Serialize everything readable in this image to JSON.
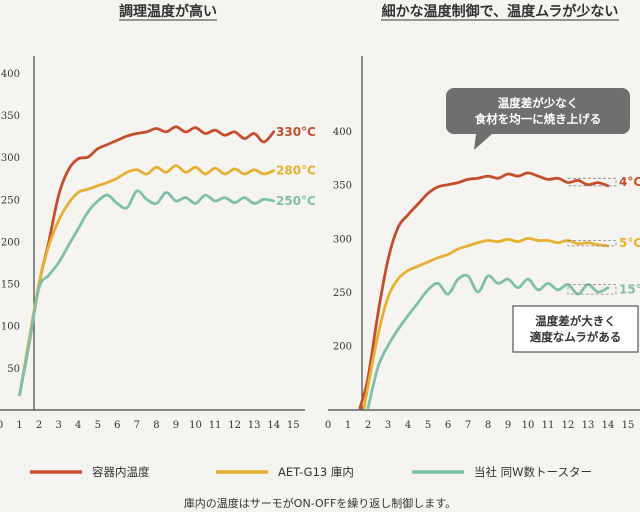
{
  "colors": {
    "inner": "#c44e2d",
    "aet": "#e6b132",
    "other": "#7fc0ab",
    "axis": "#444444",
    "bubble_dark": "#6f6f6f",
    "bubble_light": "#555555"
  },
  "legend": [
    "容器内温度",
    "AET-G13 庫内",
    "当社 同W数トースター"
  ],
  "footnote": "庫内の温度はサーモがON-OFFを繰り返し制御します。",
  "chart_data": [
    {
      "type": "line",
      "title": "調理温度が高い",
      "xlim": [
        0,
        15.6
      ],
      "ylim": [
        0,
        420
      ],
      "x_ticks": [
        0,
        1,
        2,
        3,
        4,
        5,
        6,
        7,
        8,
        9,
        10,
        11,
        12,
        13,
        14,
        15
      ],
      "y_ticks": [
        50,
        100,
        150,
        200,
        250,
        300,
        350,
        400
      ],
      "series": [
        {
          "name": "容器内温度",
          "color": "#c44e2d",
          "end_label": "330°C",
          "points": [
            [
              1,
              18
            ],
            [
              1.5,
              80
            ],
            [
              2,
              150
            ],
            [
              2.5,
              200
            ],
            [
              3,
              255
            ],
            [
              3.5,
              285
            ],
            [
              4,
              298
            ],
            [
              4.5,
              300
            ],
            [
              5,
              310
            ],
            [
              5.5,
              315
            ],
            [
              6,
              320
            ],
            [
              6.5,
              325
            ],
            [
              7,
              328
            ],
            [
              7.5,
              330
            ],
            [
              8,
              334
            ],
            [
              8.5,
              330
            ],
            [
              9,
              336
            ],
            [
              9.5,
              330
            ],
            [
              10,
              335
            ],
            [
              10.5,
              328
            ],
            [
              11,
              332
            ],
            [
              11.5,
              326
            ],
            [
              12,
              330
            ],
            [
              12.5,
              322
            ],
            [
              13,
              328
            ],
            [
              13.5,
              318
            ],
            [
              14,
              330
            ]
          ]
        },
        {
          "name": "AET-G13 庫内",
          "color": "#e6b132",
          "end_label": "280°C",
          "points": [
            [
              1,
              18
            ],
            [
              1.5,
              85
            ],
            [
              2,
              150
            ],
            [
              2.5,
              195
            ],
            [
              3,
              225
            ],
            [
              3.5,
              245
            ],
            [
              4,
              258
            ],
            [
              4.5,
              262
            ],
            [
              5,
              266
            ],
            [
              5.5,
              270
            ],
            [
              6,
              275
            ],
            [
              6.5,
              282
            ],
            [
              7,
              285
            ],
            [
              7.5,
              280
            ],
            [
              8,
              288
            ],
            [
              8.5,
              282
            ],
            [
              9,
              290
            ],
            [
              9.5,
              282
            ],
            [
              10,
              288
            ],
            [
              10.5,
              280
            ],
            [
              11,
              287
            ],
            [
              11.5,
              280
            ],
            [
              12,
              286
            ],
            [
              12.5,
              280
            ],
            [
              13,
              285
            ],
            [
              13.5,
              280
            ],
            [
              14,
              284
            ]
          ]
        },
        {
          "name": "当社 同W数トースター",
          "color": "#7fc0ab",
          "end_label": "250°C",
          "points": [
            [
              1,
              18
            ],
            [
              1.5,
              80
            ],
            [
              2,
              145
            ],
            [
              2.5,
              160
            ],
            [
              3,
              175
            ],
            [
              3.5,
              195
            ],
            [
              4,
              215
            ],
            [
              4.5,
              235
            ],
            [
              5,
              248
            ],
            [
              5.5,
              255
            ],
            [
              6,
              245
            ],
            [
              6.5,
              240
            ],
            [
              7,
              260
            ],
            [
              7.5,
              250
            ],
            [
              8,
              245
            ],
            [
              8.5,
              258
            ],
            [
              9,
              248
            ],
            [
              9.5,
              252
            ],
            [
              10,
              245
            ],
            [
              10.5,
              255
            ],
            [
              11,
              248
            ],
            [
              11.5,
              252
            ],
            [
              12,
              246
            ],
            [
              12.5,
              252
            ],
            [
              13,
              245
            ],
            [
              13.5,
              250
            ],
            [
              14,
              248
            ]
          ]
        }
      ]
    },
    {
      "type": "line",
      "title": "細かな温度制御で、温度ムラが少ない",
      "xlim": [
        0,
        15.6
      ],
      "ylim": [
        140,
        470
      ],
      "x_ticks": [
        0,
        1,
        2,
        3,
        4,
        5,
        6,
        7,
        8,
        9,
        10,
        11,
        12,
        13,
        14,
        15
      ],
      "y_ticks": [
        200,
        250,
        300,
        350,
        400
      ],
      "callouts": [
        {
          "lines": [
            "温度差が少なく",
            "食材を均一に焼き上げる"
          ],
          "style": "dark"
        },
        {
          "lines": [
            "温度差が大きく",
            "適度なムラがある"
          ],
          "style": "light"
        }
      ],
      "series": [
        {
          "name": "容器内温度",
          "color": "#c44e2d",
          "end_label": "4°C",
          "points": [
            [
              1.6,
              142
            ],
            [
              2,
              170
            ],
            [
              2.5,
              230
            ],
            [
              3,
              280
            ],
            [
              3.5,
              310
            ],
            [
              4,
              322
            ],
            [
              4.5,
              332
            ],
            [
              5,
              342
            ],
            [
              5.5,
              348
            ],
            [
              6,
              350
            ],
            [
              6.5,
              352
            ],
            [
              7,
              355
            ],
            [
              7.5,
              356
            ],
            [
              8,
              358
            ],
            [
              8.5,
              356
            ],
            [
              9,
              360
            ],
            [
              9.5,
              358
            ],
            [
              10,
              361
            ],
            [
              10.5,
              358
            ],
            [
              11,
              355
            ],
            [
              11.5,
              356
            ],
            [
              12,
              352
            ],
            [
              12.5,
              354
            ],
            [
              13,
              350
            ],
            [
              13.5,
              352
            ],
            [
              14,
              349
            ]
          ]
        },
        {
          "name": "AET-G13 庫内",
          "color": "#e6b132",
          "end_label": "5°C",
          "points": [
            [
              1.8,
              142
            ],
            [
              2,
              162
            ],
            [
              2.5,
              210
            ],
            [
              3,
              245
            ],
            [
              3.5,
              262
            ],
            [
              4,
              270
            ],
            [
              4.5,
              274
            ],
            [
              5,
              278
            ],
            [
              5.5,
              282
            ],
            [
              6,
              285
            ],
            [
              6.5,
              290
            ],
            [
              7,
              293
            ],
            [
              7.5,
              296
            ],
            [
              8,
              298
            ],
            [
              8.5,
              297
            ],
            [
              9,
              299
            ],
            [
              9.5,
              297
            ],
            [
              10,
              300
            ],
            [
              10.5,
              298
            ],
            [
              11,
              298
            ],
            [
              11.5,
              296
            ],
            [
              12,
              298
            ],
            [
              12.5,
              295
            ],
            [
              13,
              296
            ],
            [
              13.5,
              294
            ],
            [
              14,
              293
            ]
          ]
        },
        {
          "name": "当社 同W数トースター",
          "color": "#7fc0ab",
          "end_label": "15°C",
          "points": [
            [
              2,
              142
            ],
            [
              2.5,
              180
            ],
            [
              3,
              200
            ],
            [
              3.5,
              215
            ],
            [
              4,
              228
            ],
            [
              4.5,
              240
            ],
            [
              5,
              252
            ],
            [
              5.5,
              258
            ],
            [
              6,
              248
            ],
            [
              6.5,
              262
            ],
            [
              7,
              265
            ],
            [
              7.5,
              250
            ],
            [
              8,
              265
            ],
            [
              8.5,
              258
            ],
            [
              9,
              262
            ],
            [
              9.5,
              254
            ],
            [
              10,
              262
            ],
            [
              10.5,
              252
            ],
            [
              11,
              258
            ],
            [
              11.5,
              252
            ],
            [
              12,
              257
            ],
            [
              12.5,
              248
            ],
            [
              13,
              257
            ],
            [
              13.5,
              250
            ],
            [
              14,
              254
            ]
          ]
        }
      ]
    }
  ]
}
